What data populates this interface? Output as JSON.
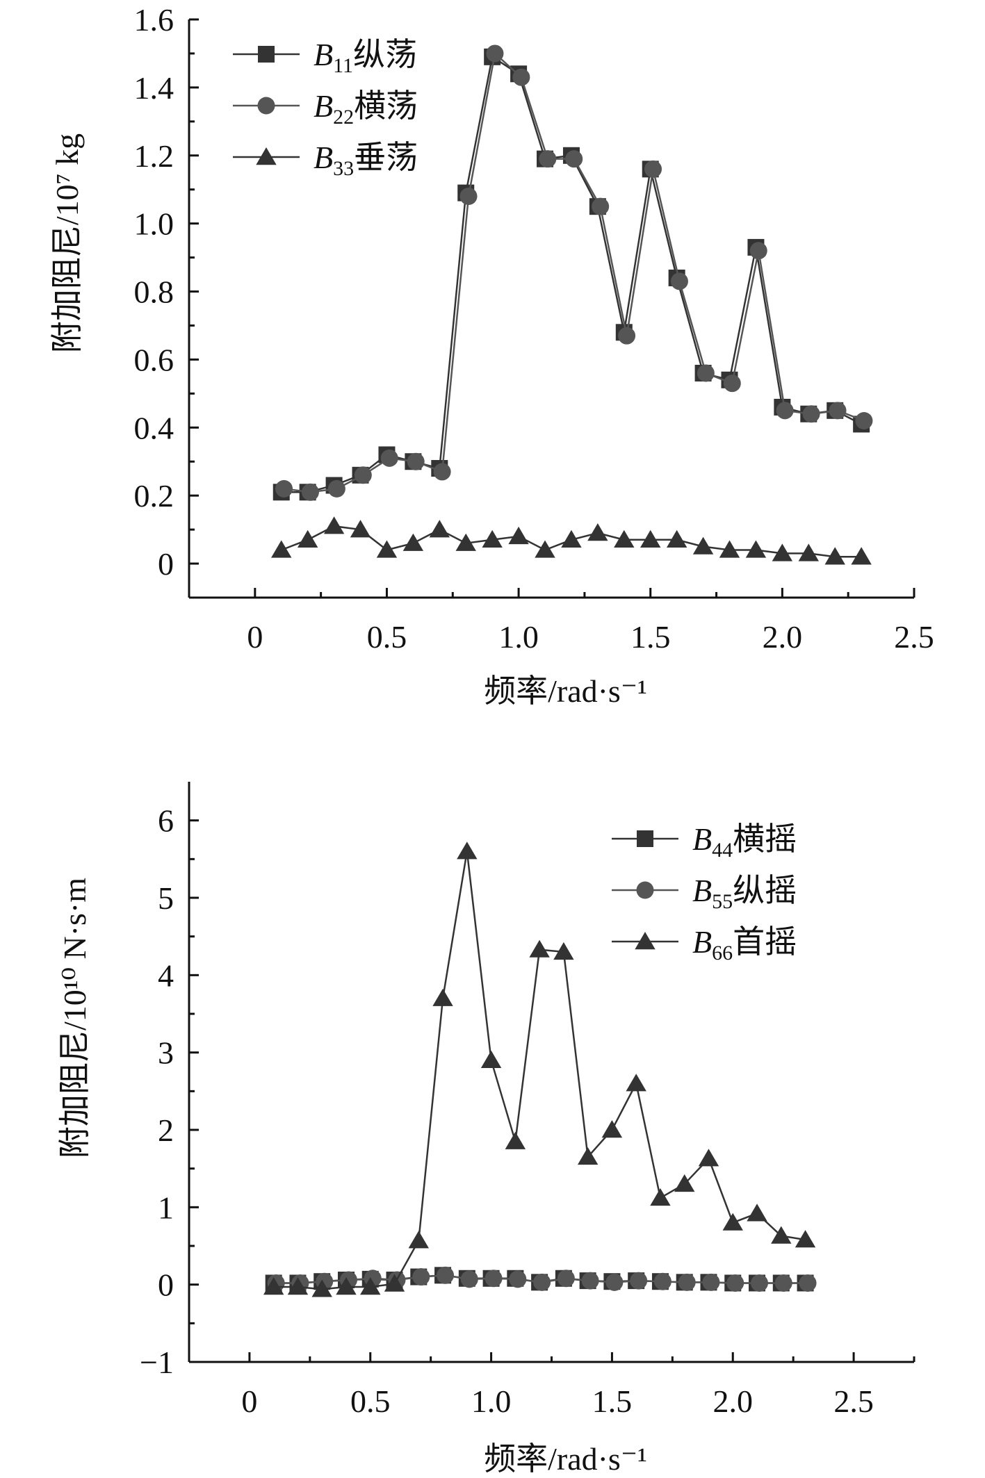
{
  "chart_data": [
    {
      "type": "line",
      "ylabel": "附加阻尼/10⁷ kg",
      "xlabel": "频率/rad·s⁻¹",
      "xlim": [
        -0.25,
        2.5
      ],
      "ylim": [
        -0.1,
        1.6
      ],
      "xticks": [
        0,
        0.5,
        1.0,
        1.5,
        2.0,
        2.5
      ],
      "xtick_labels": [
        "0",
        "0.5",
        "1.0",
        "1.5",
        "2.0",
        "2.5"
      ],
      "yticks": [
        0,
        0.2,
        0.4,
        0.6,
        0.8,
        1.0,
        1.2,
        1.4,
        1.6
      ],
      "ytick_labels": [
        "0",
        "0.2",
        "0.4",
        "0.6",
        "0.8",
        "1.0",
        "1.2",
        "1.4",
        "1.6"
      ],
      "legend_position": "top-left",
      "series": [
        {
          "name": "B11纵荡",
          "sym": "B",
          "sub": "11",
          "cn": "纵荡",
          "marker": "square",
          "color": "#333333",
          "x": [
            0.1,
            0.2,
            0.3,
            0.4,
            0.5,
            0.6,
            0.7,
            0.8,
            0.9,
            1.0,
            1.1,
            1.2,
            1.3,
            1.4,
            1.5,
            1.6,
            1.7,
            1.8,
            1.9,
            2.0,
            2.1,
            2.2,
            2.3
          ],
          "values": [
            0.21,
            0.21,
            0.23,
            0.26,
            0.32,
            0.3,
            0.28,
            1.09,
            1.49,
            1.44,
            1.19,
            1.2,
            1.05,
            0.68,
            1.16,
            0.84,
            0.56,
            0.54,
            0.93,
            0.46,
            0.44,
            0.45,
            0.41
          ]
        },
        {
          "name": "B22横荡",
          "sym": "B",
          "sub": "22",
          "cn": "横荡",
          "marker": "circle",
          "color": "#555555",
          "x": [
            0.11,
            0.21,
            0.31,
            0.41,
            0.51,
            0.61,
            0.71,
            0.81,
            0.91,
            1.01,
            1.11,
            1.21,
            1.31,
            1.41,
            1.51,
            1.61,
            1.71,
            1.81,
            1.91,
            2.01,
            2.11,
            2.21,
            2.31
          ],
          "values": [
            0.22,
            0.21,
            0.22,
            0.26,
            0.31,
            0.3,
            0.27,
            1.08,
            1.5,
            1.43,
            1.19,
            1.19,
            1.05,
            0.67,
            1.16,
            0.83,
            0.56,
            0.53,
            0.92,
            0.45,
            0.44,
            0.45,
            0.42
          ]
        },
        {
          "name": "B33垂荡",
          "sym": "B",
          "sub": "33",
          "cn": "垂荡",
          "marker": "triangle",
          "color": "#333333",
          "x": [
            0.1,
            0.2,
            0.3,
            0.4,
            0.5,
            0.6,
            0.7,
            0.8,
            0.9,
            1.0,
            1.1,
            1.2,
            1.3,
            1.4,
            1.5,
            1.6,
            1.7,
            1.8,
            1.9,
            2.0,
            2.1,
            2.2,
            2.3
          ],
          "values": [
            0.04,
            0.07,
            0.11,
            0.1,
            0.04,
            0.06,
            0.1,
            0.06,
            0.07,
            0.08,
            0.04,
            0.07,
            0.09,
            0.07,
            0.07,
            0.07,
            0.05,
            0.04,
            0.04,
            0.03,
            0.03,
            0.02,
            0.02
          ]
        }
      ]
    },
    {
      "type": "line",
      "ylabel": "附加阻尼/10¹⁰ N·s·m",
      "xlabel": "频率/rad·s⁻¹",
      "xlim": [
        -0.25,
        2.75
      ],
      "ylim": [
        -1,
        6.5
      ],
      "xticks": [
        0,
        0.5,
        1.0,
        1.5,
        2.0,
        2.5
      ],
      "xtick_labels": [
        "0",
        "0.5",
        "1.0",
        "1.5",
        "2.0",
        "2.5"
      ],
      "yticks": [
        -1,
        0,
        1,
        2,
        3,
        4,
        5,
        6
      ],
      "ytick_labels": [
        "−1",
        "0",
        "1",
        "2",
        "3",
        "4",
        "5",
        "6"
      ],
      "legend_position": "top-right",
      "series": [
        {
          "name": "B44横摇",
          "sym": "B",
          "sub": "44",
          "cn": "横摇",
          "marker": "square",
          "color": "#333333",
          "x": [
            0.1,
            0.2,
            0.3,
            0.4,
            0.5,
            0.6,
            0.7,
            0.8,
            0.9,
            1.0,
            1.1,
            1.2,
            1.3,
            1.4,
            1.5,
            1.6,
            1.7,
            1.8,
            1.9,
            2.0,
            2.1,
            2.2,
            2.3
          ],
          "values": [
            0.02,
            0.02,
            0.04,
            0.06,
            0.07,
            0.06,
            0.1,
            0.12,
            0.08,
            0.08,
            0.08,
            0.03,
            0.08,
            0.05,
            0.04,
            0.05,
            0.04,
            0.03,
            0.03,
            0.02,
            0.02,
            0.02,
            0.02
          ]
        },
        {
          "name": "B55纵摇",
          "sym": "B",
          "sub": "55",
          "cn": "纵摇",
          "marker": "circle",
          "color": "#555555",
          "x": [
            0.11,
            0.21,
            0.31,
            0.41,
            0.51,
            0.61,
            0.71,
            0.81,
            0.91,
            1.01,
            1.11,
            1.21,
            1.31,
            1.41,
            1.51,
            1.61,
            1.71,
            1.81,
            1.91,
            2.01,
            2.11,
            2.21,
            2.31
          ],
          "values": [
            0.02,
            0.02,
            0.04,
            0.06,
            0.08,
            0.06,
            0.1,
            0.12,
            0.07,
            0.08,
            0.07,
            0.03,
            0.08,
            0.05,
            0.03,
            0.05,
            0.04,
            0.03,
            0.03,
            0.02,
            0.02,
            0.02,
            0.02
          ]
        },
        {
          "name": "B66首摇",
          "sym": "B",
          "sub": "66",
          "cn": "首摇",
          "marker": "triangle",
          "color": "#333333",
          "x": [
            0.1,
            0.2,
            0.3,
            0.4,
            0.5,
            0.6,
            0.7,
            0.8,
            0.9,
            1.0,
            1.1,
            1.2,
            1.3,
            1.4,
            1.5,
            1.6,
            1.7,
            1.8,
            1.9,
            2.0,
            2.1,
            2.2,
            2.3
          ],
          "values": [
            -0.03,
            -0.03,
            -0.06,
            -0.03,
            -0.03,
            0.01,
            0.57,
            3.7,
            5.6,
            2.9,
            1.85,
            4.33,
            4.3,
            1.65,
            2.0,
            2.6,
            1.12,
            1.3,
            1.63,
            0.8,
            0.92,
            0.63,
            0.58
          ]
        }
      ]
    }
  ]
}
